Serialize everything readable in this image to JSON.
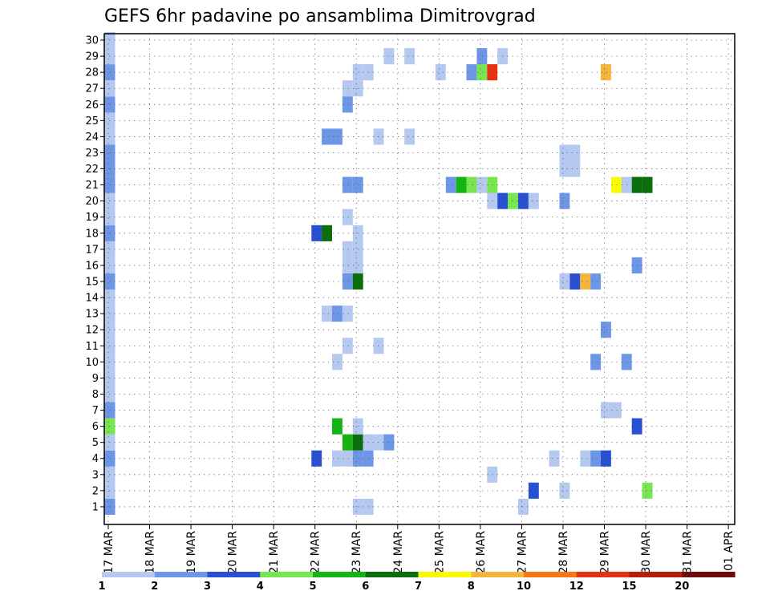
{
  "chart_data": {
    "type": "heatmap",
    "title": "GEFS 6hr padavine po ansamblima Dimitrovgrad",
    "xlabel": "",
    "ylabel": "",
    "x_tick_labels": [
      "17 MAR",
      "18 MAR",
      "19 MAR",
      "20 MAR",
      "21 MAR",
      "22 MAR",
      "23 MAR",
      "24 MAR",
      "25 MAR",
      "26 MAR",
      "27 MAR",
      "28 MAR",
      "29 MAR",
      "30 MAR",
      "31 MAR",
      "01 APR"
    ],
    "y_tick_labels": [
      "1",
      "2",
      "3",
      "4",
      "5",
      "6",
      "7",
      "8",
      "9",
      "10",
      "11",
      "12",
      "13",
      "14",
      "15",
      "16",
      "17",
      "18",
      "19",
      "20",
      "21",
      "22",
      "23",
      "24",
      "25",
      "26",
      "27",
      "28",
      "29",
      "30"
    ],
    "grid": true,
    "time_step_hours": 6,
    "legend": {
      "placement": "bottom",
      "bins": [
        {
          "color": "#b4c8f0"
        },
        {
          "color": "#6e96e6"
        },
        {
          "color": "#2850d2"
        },
        {
          "color": "#78e650"
        },
        {
          "color": "#14b414"
        },
        {
          "color": "#0a6e0a"
        },
        {
          "color": "#fafa00"
        },
        {
          "color": "#f5b43c"
        },
        {
          "color": "#f57814"
        },
        {
          "color": "#e63214"
        },
        {
          "color": "#b41e0a"
        },
        {
          "color": "#6e0a0a"
        }
      ],
      "labels": [
        "1",
        "2",
        "3",
        "4",
        "5",
        "6",
        "7",
        "8",
        "10",
        "12",
        "15",
        "20"
      ]
    },
    "cells": [
      [
        0,
        1,
        1
      ],
      [
        0,
        2,
        0
      ],
      [
        0,
        3,
        0
      ],
      [
        0,
        4,
        1
      ],
      [
        0,
        5,
        0
      ],
      [
        0,
        6,
        3
      ],
      [
        0,
        7,
        1
      ],
      [
        0,
        8,
        0
      ],
      [
        0,
        9,
        0
      ],
      [
        0,
        10,
        0
      ],
      [
        0,
        11,
        0
      ],
      [
        0,
        12,
        0
      ],
      [
        0,
        13,
        0
      ],
      [
        0,
        14,
        0
      ],
      [
        0,
        15,
        1
      ],
      [
        0,
        16,
        0
      ],
      [
        0,
        17,
        0
      ],
      [
        0,
        18,
        1
      ],
      [
        0,
        19,
        0
      ],
      [
        0,
        20,
        0
      ],
      [
        0,
        21,
        1
      ],
      [
        0,
        22,
        1
      ],
      [
        0,
        23,
        1
      ],
      [
        0,
        24,
        0
      ],
      [
        0,
        25,
        0
      ],
      [
        0,
        26,
        1
      ],
      [
        0,
        27,
        0
      ],
      [
        0,
        28,
        1
      ],
      [
        0,
        29,
        0
      ],
      [
        0,
        30,
        0
      ],
      [
        20,
        18,
        2
      ],
      [
        21,
        18,
        5
      ],
      [
        20,
        4,
        2
      ],
      [
        21,
        24,
        1
      ],
      [
        22,
        24,
        1
      ],
      [
        21,
        13,
        0
      ],
      [
        22,
        13,
        1
      ],
      [
        23,
        13,
        0
      ],
      [
        22,
        10,
        0
      ],
      [
        22,
        6,
        4
      ],
      [
        22,
        4,
        0
      ],
      [
        23,
        4,
        0
      ],
      [
        24,
        4,
        1
      ],
      [
        25,
        4,
        1
      ],
      [
        23,
        27,
        0
      ],
      [
        24,
        27,
        0
      ],
      [
        24,
        28,
        0
      ],
      [
        25,
        28,
        0
      ],
      [
        23,
        26,
        1
      ],
      [
        23,
        21,
        1
      ],
      [
        24,
        21,
        1
      ],
      [
        23,
        19,
        0
      ],
      [
        24,
        18,
        0
      ],
      [
        24,
        17,
        0
      ],
      [
        23,
        17,
        0
      ],
      [
        23,
        16,
        0
      ],
      [
        24,
        16,
        0
      ],
      [
        23,
        15,
        1
      ],
      [
        24,
        15,
        5
      ],
      [
        23,
        11,
        0
      ],
      [
        23,
        5,
        4
      ],
      [
        24,
        5,
        5
      ],
      [
        25,
        5,
        0
      ],
      [
        26,
        5,
        0
      ],
      [
        27,
        5,
        1
      ],
      [
        24,
        6,
        0
      ],
      [
        24,
        1,
        0
      ],
      [
        25,
        1,
        0
      ],
      [
        26,
        24,
        0
      ],
      [
        29,
        24,
        0
      ],
      [
        27,
        29,
        0
      ],
      [
        29,
        29,
        0
      ],
      [
        26,
        11,
        0
      ],
      [
        32,
        28,
        0
      ],
      [
        35,
        28,
        1
      ],
      [
        36,
        28,
        3
      ],
      [
        37,
        28,
        9
      ],
      [
        36,
        29,
        1
      ],
      [
        38,
        29,
        0
      ],
      [
        33,
        21,
        1
      ],
      [
        34,
        21,
        4
      ],
      [
        35,
        21,
        3
      ],
      [
        36,
        21,
        0
      ],
      [
        37,
        21,
        3
      ],
      [
        37,
        20,
        0
      ],
      [
        38,
        20,
        2
      ],
      [
        39,
        20,
        3
      ],
      [
        40,
        20,
        2
      ],
      [
        41,
        20,
        0
      ],
      [
        37,
        3,
        0
      ],
      [
        40,
        1,
        0
      ],
      [
        41,
        2,
        2
      ],
      [
        43,
        4,
        0
      ],
      [
        44,
        2,
        0
      ],
      [
        44,
        23,
        0
      ],
      [
        45,
        23,
        0
      ],
      [
        44,
        22,
        0
      ],
      [
        45,
        22,
        0
      ],
      [
        44,
        20,
        1
      ],
      [
        44,
        15,
        0
      ],
      [
        45,
        15,
        2
      ],
      [
        46,
        15,
        7
      ],
      [
        47,
        15,
        1
      ],
      [
        46,
        4,
        0
      ],
      [
        47,
        4,
        1
      ],
      [
        48,
        4,
        2
      ],
      [
        47,
        10,
        1
      ],
      [
        48,
        28,
        7
      ],
      [
        48,
        12,
        1
      ],
      [
        48,
        7,
        0
      ],
      [
        49,
        7,
        0
      ],
      [
        49,
        21,
        6
      ],
      [
        50,
        21,
        0
      ],
      [
        51,
        21,
        5
      ],
      [
        52,
        21,
        5
      ],
      [
        50,
        10,
        1
      ],
      [
        51,
        16,
        1
      ],
      [
        51,
        6,
        2
      ],
      [
        52,
        2,
        3
      ]
    ]
  }
}
